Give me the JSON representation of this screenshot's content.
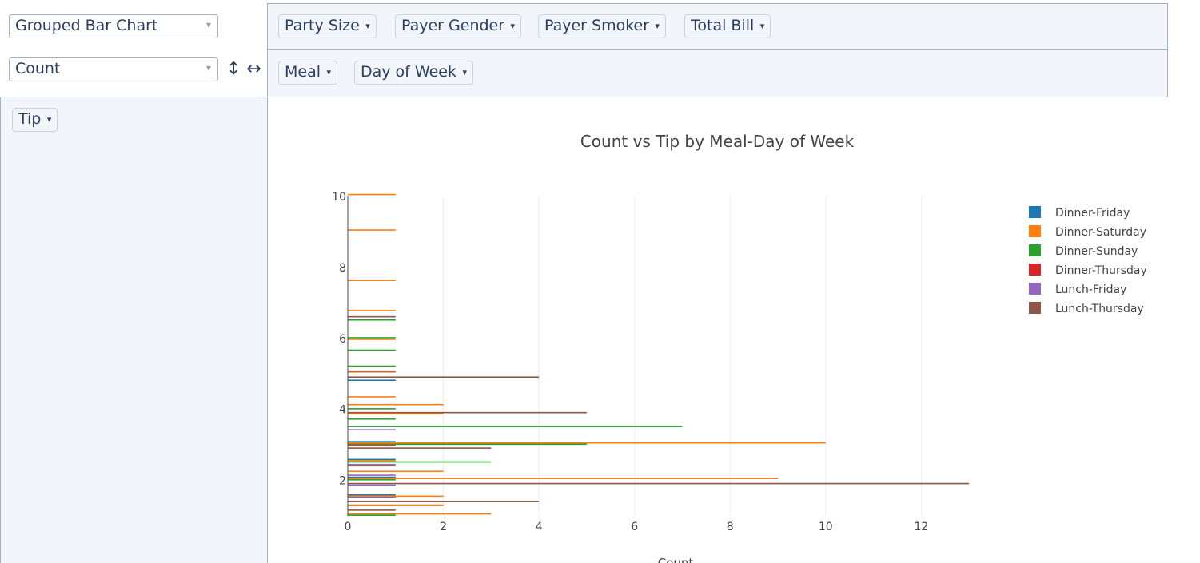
{
  "controls": {
    "renderer": "Grouped Bar Chart",
    "aggregator": "Count"
  },
  "unused_attributes": [
    "Party Size",
    "Payer Gender",
    "Payer Smoker",
    "Total Bill"
  ],
  "column_attributes": [
    "Meal",
    "Day of Week"
  ],
  "row_attributes": [
    "Tip"
  ],
  "chart_data": {
    "type": "bar",
    "orientation": "horizontal",
    "title": "Count vs Tip by Meal-Day of Week",
    "x_label": "Count",
    "xlim": [
      0,
      13.7
    ],
    "xticks": [
      0,
      2,
      4,
      6,
      8,
      10,
      12
    ],
    "ylim": [
      1,
      10
    ],
    "yticks": [
      2,
      4,
      6,
      8,
      10
    ],
    "grid": true,
    "legend": "top-right",
    "series": [
      {
        "name": "Dinner-Friday",
        "color": "#1f77b4",
        "y": [
          4.73,
          3.0,
          2.5,
          2.0,
          1.5
        ],
        "values": [
          1,
          1,
          1,
          1,
          1
        ]
      },
      {
        "name": "Dinner-Saturday",
        "color": "#ff7f0e",
        "y": [
          10,
          9,
          7.58,
          6.73,
          5.92,
          5.0,
          4.3,
          4.08,
          3.82,
          3.0,
          2.5,
          2.2,
          2.0,
          1.5,
          1.25,
          1.0
        ],
        "values": [
          1,
          1,
          1,
          1,
          1,
          1,
          1,
          2,
          2,
          10,
          1,
          2,
          9,
          2,
          2,
          3
        ]
      },
      {
        "name": "Dinner-Sunday",
        "color": "#2ca02c",
        "y": [
          6.5,
          6.0,
          5.65,
          5.2,
          4.0,
          3.71,
          3.5,
          3.0,
          2.5,
          2.0,
          1.5,
          1.0
        ],
        "values": [
          1,
          1,
          1,
          1,
          1,
          1,
          7,
          5,
          3,
          1,
          1,
          1
        ]
      },
      {
        "name": "Dinner-Thursday",
        "color": "#d62728",
        "y": [
          3.0
        ],
        "values": [
          1
        ]
      },
      {
        "name": "Lunch-Friday",
        "color": "#9467bd",
        "y": [
          3.48,
          2.5,
          2.2,
          1.92,
          1.58
        ],
        "values": [
          1,
          1,
          1,
          1,
          1
        ]
      },
      {
        "name": "Lunch-Thursday",
        "color": "#8c564b",
        "y": [
          6.7,
          5.17,
          5.0,
          4.0,
          3.0,
          2.5,
          2.0,
          1.5,
          1.25
        ],
        "values": [
          1,
          1,
          4,
          5,
          3,
          1,
          13,
          4,
          1
        ]
      }
    ]
  }
}
